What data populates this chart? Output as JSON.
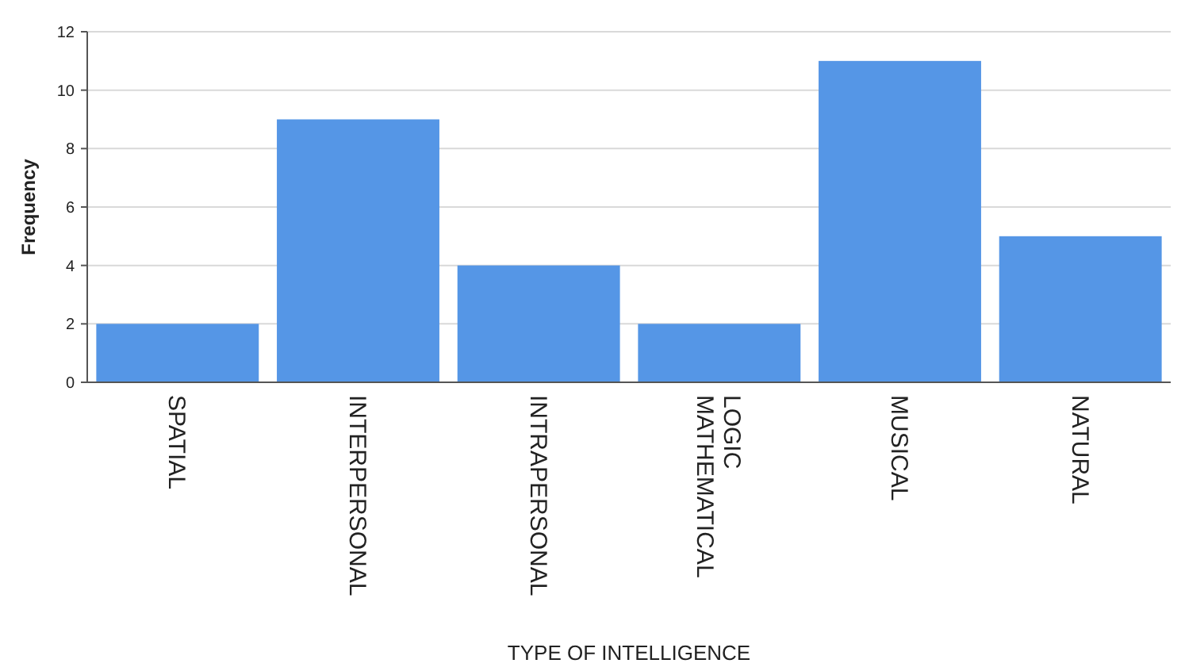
{
  "chart_data": {
    "type": "bar",
    "xlabel": "TYPE OF INTELLIGENCE",
    "ylabel": "Frequency",
    "categories": [
      "SPATIAL",
      "INTERPERSONAL",
      "INTRAPERSONAL",
      "MATHEMATICAL LOGIC",
      "MUSICAL",
      "NATURAL"
    ],
    "values": [
      2,
      9,
      4,
      2,
      11,
      5
    ],
    "color": "#5596e6",
    "ylim": [
      0,
      12
    ],
    "yticks": [
      0,
      2,
      4,
      6,
      8,
      10,
      12
    ],
    "grid": "y"
  }
}
